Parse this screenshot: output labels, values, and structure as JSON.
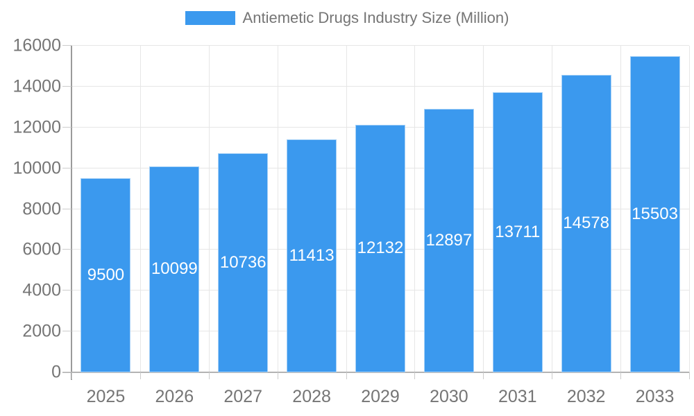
{
  "legend": {
    "label": "Antiemetic Drugs Industry Size (Million)"
  },
  "colors": {
    "bar": "#3b99ee",
    "grid": "#e6e6e6",
    "tick": "#cccccc",
    "axis": "#9a9a9a",
    "baseline": "#b3b3b3",
    "text": "#757575",
    "bar_label": "#ffffff"
  },
  "chart_data": {
    "type": "bar",
    "title": "Antiemetic Drugs Industry Size (Million)",
    "categories": [
      "2025",
      "2026",
      "2027",
      "2028",
      "2029",
      "2030",
      "2031",
      "2032",
      "2033"
    ],
    "series": [
      {
        "name": "Antiemetic Drugs Industry Size (Million)",
        "values": [
          9500,
          10099,
          10736,
          11413,
          12132,
          12897,
          13711,
          14578,
          15503
        ]
      }
    ],
    "xlabel": "",
    "ylabel": "",
    "ylim": [
      0,
      16000
    ],
    "yticks": [
      0,
      2000,
      4000,
      6000,
      8000,
      10000,
      12000,
      14000,
      16000
    ],
    "grid": true,
    "legend_position": "top",
    "value_labels": "inside-center"
  }
}
